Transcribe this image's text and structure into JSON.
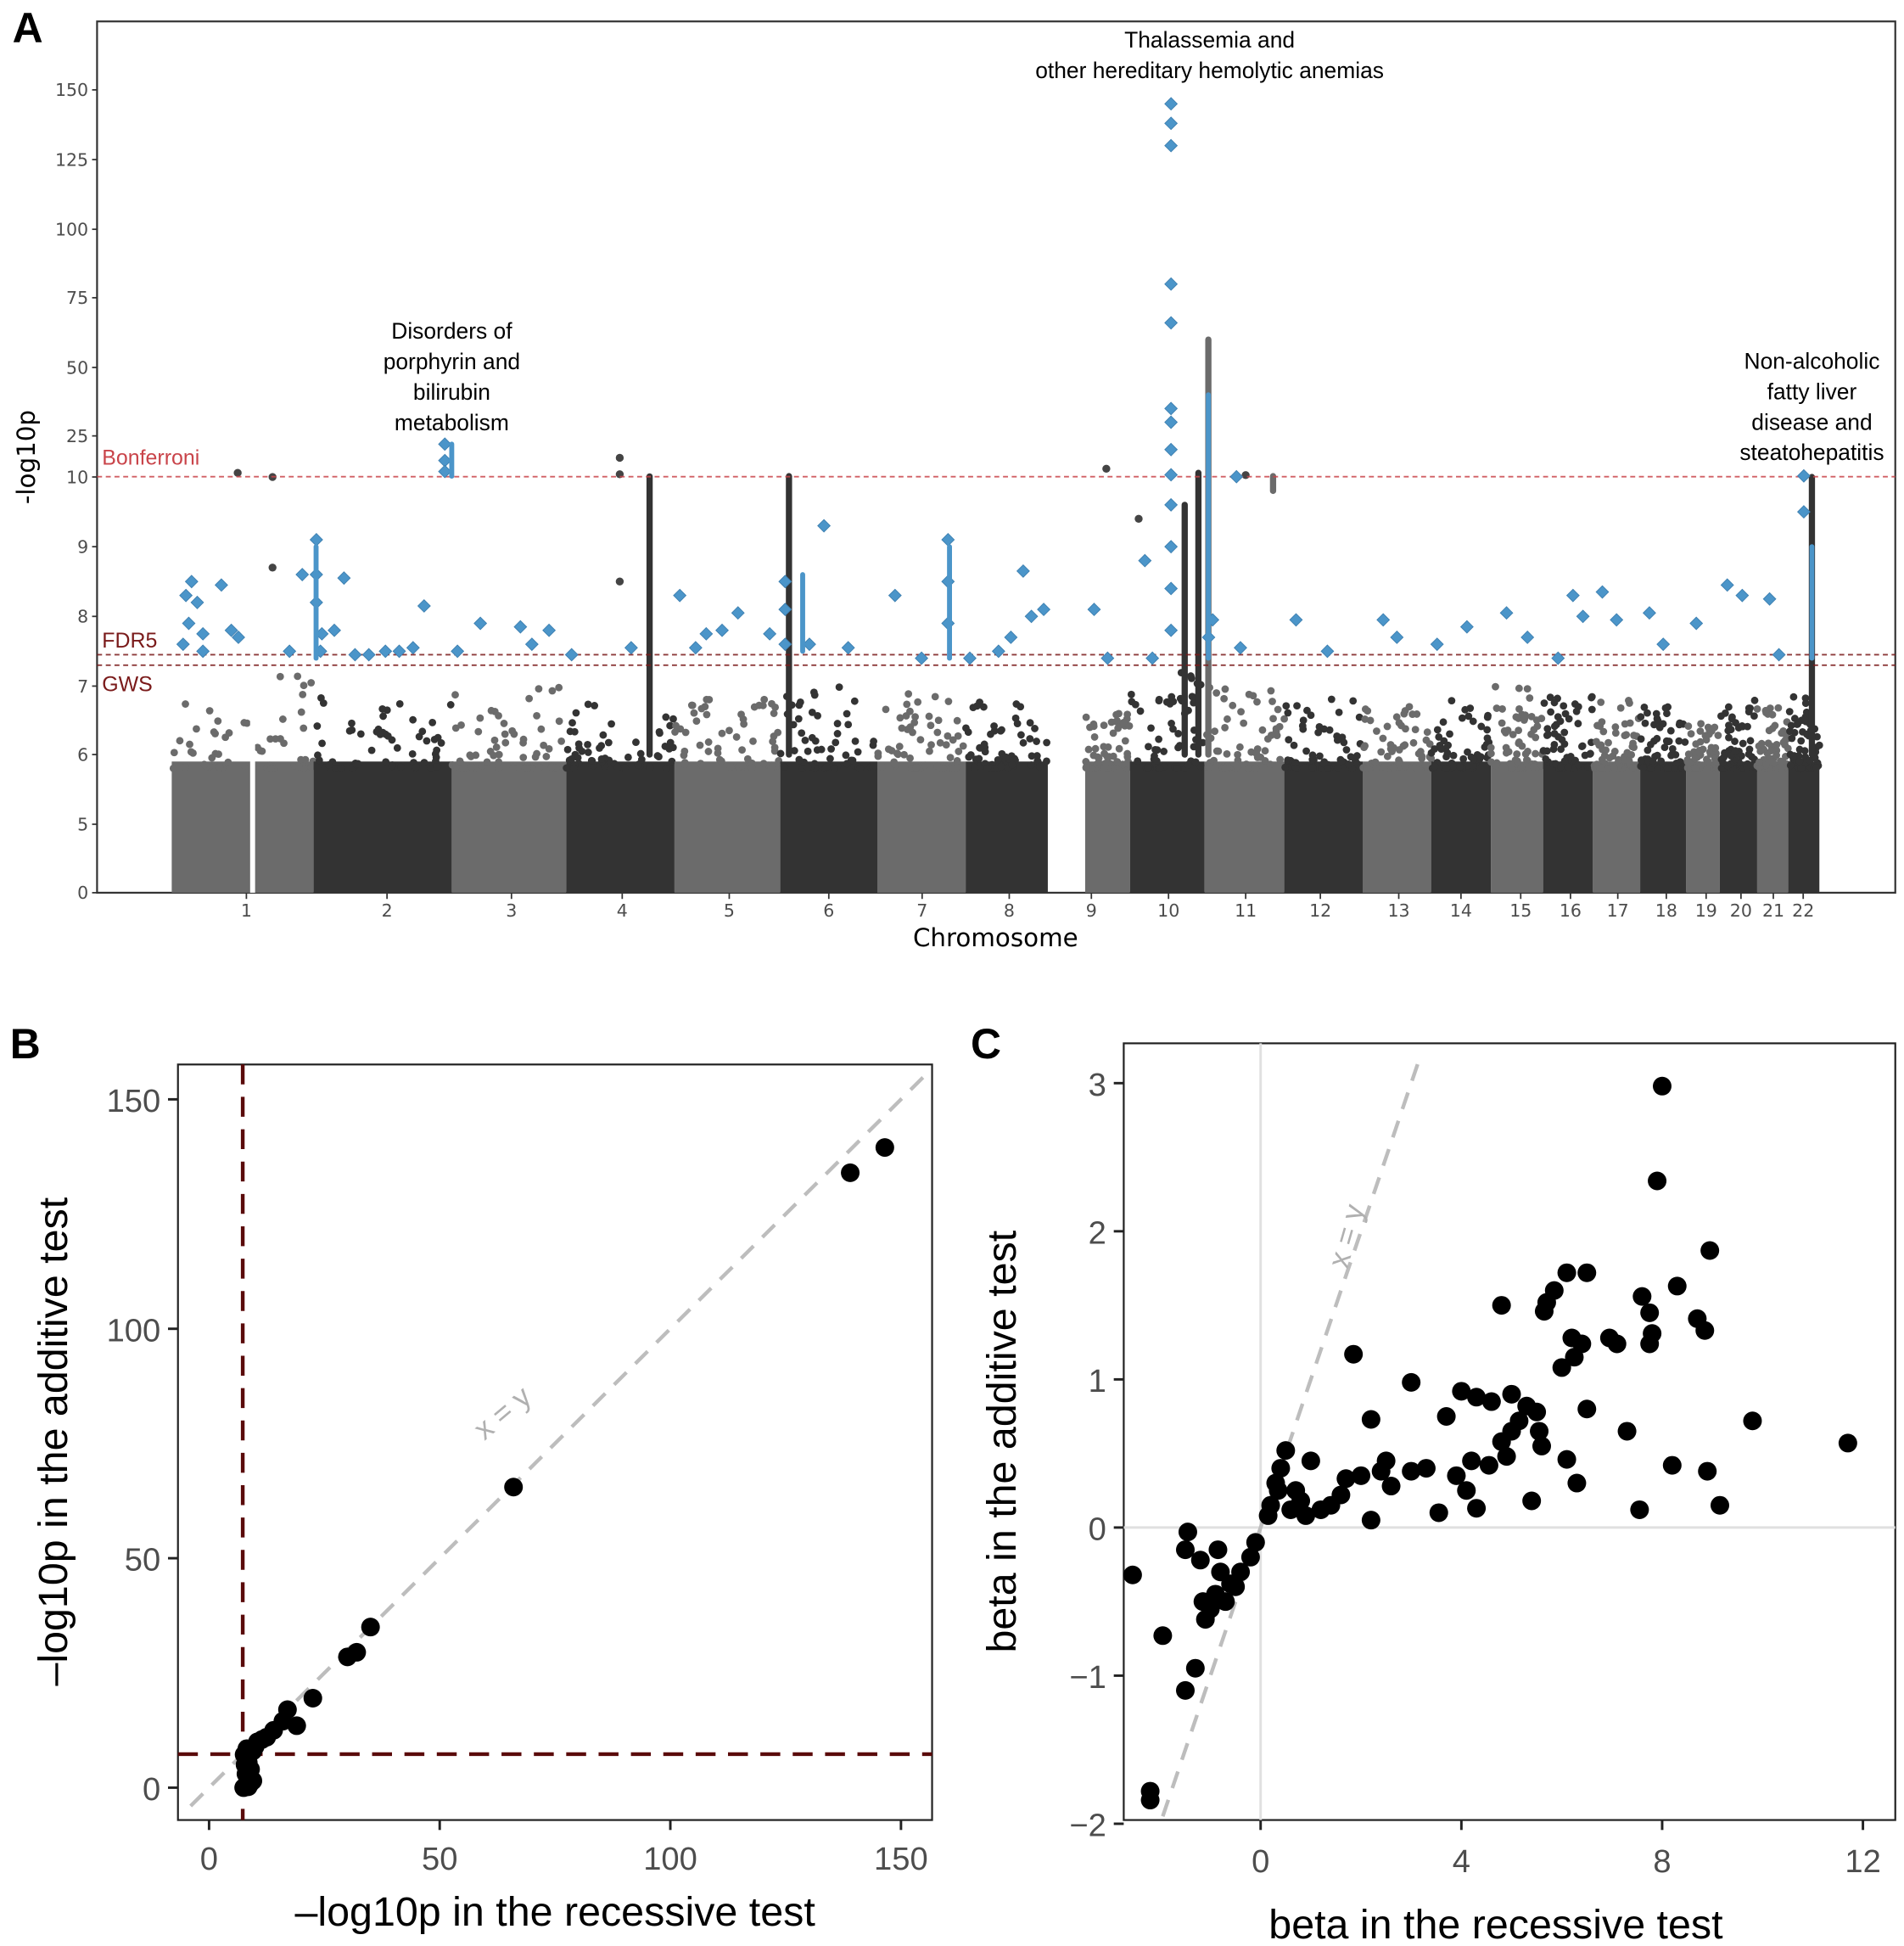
{
  "figure": {
    "panel_labels": [
      "A",
      "B",
      "C"
    ]
  },
  "chart_data": [
    {
      "panel": "A",
      "type": "scatter",
      "subtype": "manhattan",
      "xlabel": "Chromosome",
      "ylabel": "-log10p",
      "x_tick_labels": [
        "1",
        "2",
        "3",
        "4",
        "5",
        "6",
        "7",
        "8",
        "9",
        "10",
        "11",
        "12",
        "13",
        "14",
        "15",
        "16",
        "17",
        "18",
        "19",
        "20",
        "21",
        "22"
      ],
      "y_tick_labels": [
        "0",
        "5",
        "6",
        "7",
        "8",
        "9",
        "10",
        "25",
        "50",
        "75",
        "100",
        "125",
        "150"
      ],
      "y_axis_note": "broken scale: 0-5 compressed, 5-10 linear, 10-150 compressed",
      "ylim": [
        0,
        170
      ],
      "thresholds": [
        {
          "name": "Bonferroni",
          "value": 10.1,
          "color": "#c9444a"
        },
        {
          "name": "FDR5",
          "value": 7.45,
          "color": "#7a1a1a"
        },
        {
          "name": "GWS",
          "value": 7.3,
          "color": "#7a1a1a"
        }
      ],
      "colors": {
        "chrom_odd": "#6b6b6b",
        "chrom_even": "#333333",
        "highlight": "#4b95c9"
      },
      "chromosome_bulk_max": [
        6.8,
        6.5,
        6.6,
        6.4,
        6.5,
        6.7,
        6.5,
        6.4,
        6.2,
        6.8,
        6.6,
        6.5,
        6.3,
        6.4,
        6.6,
        6.5,
        6.4,
        6.3,
        6.1,
        6.4,
        6.3,
        6.5
      ],
      "annotations": [
        {
          "lines": [
            "Disorders of",
            "porphyrin and",
            "bilirubin",
            "metabolism"
          ],
          "chromosome": "2"
        },
        {
          "lines": [
            "Thalassemia and",
            "other hereditary hemolytic anemias"
          ],
          "chromosome": "11"
        },
        {
          "lines": [
            "Non-alcoholic",
            "fatty liver",
            "disease and",
            "steatohepatitis"
          ],
          "chromosome": "22"
        }
      ],
      "highlighted_points": [
        {
          "chr": 1,
          "pos": 0.1,
          "y": 8.3
        },
        {
          "chr": 1,
          "pos": 0.14,
          "y": 8.5
        },
        {
          "chr": 1,
          "pos": 0.18,
          "y": 8.2
        },
        {
          "chr": 1,
          "pos": 0.12,
          "y": 7.9
        },
        {
          "chr": 1,
          "pos": 0.08,
          "y": 7.6
        },
        {
          "chr": 1,
          "pos": 0.22,
          "y": 7.75
        },
        {
          "chr": 1,
          "pos": 0.22,
          "y": 7.5
        },
        {
          "chr": 1,
          "pos": 0.35,
          "y": 8.45
        },
        {
          "chr": 1,
          "pos": 0.42,
          "y": 7.8
        },
        {
          "chr": 1,
          "pos": 0.47,
          "y": 7.7
        },
        {
          "chr": 1,
          "pos": 0.83,
          "y": 7.5
        },
        {
          "chr": 1,
          "pos": 0.92,
          "y": 8.6
        },
        {
          "chr": 2,
          "pos": 0.02,
          "y": 9.1
        },
        {
          "chr": 2,
          "pos": 0.02,
          "y": 8.6
        },
        {
          "chr": 2,
          "pos": 0.02,
          "y": 8.2
        },
        {
          "chr": 2,
          "pos": 0.06,
          "y": 7.75
        },
        {
          "chr": 2,
          "pos": 0.05,
          "y": 7.5
        },
        {
          "chr": 2,
          "pos": 0.15,
          "y": 7.8
        },
        {
          "chr": 2,
          "pos": 0.22,
          "y": 8.55
        },
        {
          "chr": 2,
          "pos": 0.3,
          "y": 7.45
        },
        {
          "chr": 2,
          "pos": 0.4,
          "y": 7.45
        },
        {
          "chr": 2,
          "pos": 0.52,
          "y": 7.5
        },
        {
          "chr": 2,
          "pos": 0.62,
          "y": 7.5
        },
        {
          "chr": 2,
          "pos": 0.72,
          "y": 7.55
        },
        {
          "chr": 2,
          "pos": 0.8,
          "y": 8.15
        },
        {
          "chr": 2,
          "pos": 0.95,
          "y": 22
        },
        {
          "chr": 2,
          "pos": 0.95,
          "y": 16
        },
        {
          "chr": 2,
          "pos": 0.95,
          "y": 12
        },
        {
          "chr": 3,
          "pos": 0.05,
          "y": 7.5
        },
        {
          "chr": 3,
          "pos": 0.25,
          "y": 7.9
        },
        {
          "chr": 3,
          "pos": 0.6,
          "y": 7.85
        },
        {
          "chr": 3,
          "pos": 0.7,
          "y": 7.6
        },
        {
          "chr": 3,
          "pos": 0.85,
          "y": 7.8
        },
        {
          "chr": 4,
          "pos": 0.05,
          "y": 7.45
        },
        {
          "chr": 4,
          "pos": 0.6,
          "y": 7.55
        },
        {
          "chr": 5,
          "pos": 0.05,
          "y": 8.3
        },
        {
          "chr": 5,
          "pos": 0.2,
          "y": 7.55
        },
        {
          "chr": 5,
          "pos": 0.3,
          "y": 7.75
        },
        {
          "chr": 5,
          "pos": 0.45,
          "y": 7.8
        },
        {
          "chr": 5,
          "pos": 0.6,
          "y": 8.05
        },
        {
          "chr": 5,
          "pos": 0.9,
          "y": 7.75
        },
        {
          "chr": 6,
          "pos": 0.05,
          "y": 8.5
        },
        {
          "chr": 6,
          "pos": 0.05,
          "y": 8.1
        },
        {
          "chr": 6,
          "pos": 0.05,
          "y": 7.6
        },
        {
          "chr": 6,
          "pos": 0.3,
          "y": 7.6
        },
        {
          "chr": 6,
          "pos": 0.45,
          "y": 9.3
        },
        {
          "chr": 6,
          "pos": 0.7,
          "y": 7.55
        },
        {
          "chr": 7,
          "pos": 0.2,
          "y": 8.3
        },
        {
          "chr": 7,
          "pos": 0.5,
          "y": 7.4
        },
        {
          "chr": 7,
          "pos": 0.8,
          "y": 9.1
        },
        {
          "chr": 7,
          "pos": 0.8,
          "y": 8.5
        },
        {
          "chr": 7,
          "pos": 0.8,
          "y": 7.9
        },
        {
          "chr": 8,
          "pos": 0.05,
          "y": 7.4
        },
        {
          "chr": 8,
          "pos": 0.4,
          "y": 7.5
        },
        {
          "chr": 8,
          "pos": 0.55,
          "y": 7.7
        },
        {
          "chr": 8,
          "pos": 0.7,
          "y": 8.65
        },
        {
          "chr": 8,
          "pos": 0.8,
          "y": 8.0
        },
        {
          "chr": 8,
          "pos": 0.95,
          "y": 8.1
        },
        {
          "chr": 9,
          "pos": 0.2,
          "y": 8.1
        },
        {
          "chr": 9,
          "pos": 0.5,
          "y": 7.4
        },
        {
          "chr": 10,
          "pos": 0.2,
          "y": 8.8
        },
        {
          "chr": 10,
          "pos": 0.3,
          "y": 7.4
        },
        {
          "chr": 10,
          "pos": 0.55,
          "y": 145
        },
        {
          "chr": 10,
          "pos": 0.55,
          "y": 138
        },
        {
          "chr": 10,
          "pos": 0.55,
          "y": 130
        },
        {
          "chr": 10,
          "pos": 0.55,
          "y": 80
        },
        {
          "chr": 10,
          "pos": 0.55,
          "y": 66
        },
        {
          "chr": 10,
          "pos": 0.55,
          "y": 35
        },
        {
          "chr": 10,
          "pos": 0.55,
          "y": 30
        },
        {
          "chr": 10,
          "pos": 0.55,
          "y": 20
        },
        {
          "chr": 10,
          "pos": 0.55,
          "y": 10.8
        },
        {
          "chr": 10,
          "pos": 0.55,
          "y": 9.6
        },
        {
          "chr": 10,
          "pos": 0.55,
          "y": 9.0
        },
        {
          "chr": 10,
          "pos": 0.55,
          "y": 8.4
        },
        {
          "chr": 10,
          "pos": 0.55,
          "y": 7.8
        },
        {
          "chr": 11,
          "pos": 0.05,
          "y": 7.7
        },
        {
          "chr": 11,
          "pos": 0.1,
          "y": 7.95
        },
        {
          "chr": 11,
          "pos": 0.4,
          "y": 10.1
        },
        {
          "chr": 11,
          "pos": 0.45,
          "y": 7.55
        },
        {
          "chr": 12,
          "pos": 0.15,
          "y": 7.95
        },
        {
          "chr": 12,
          "pos": 0.55,
          "y": 7.5
        },
        {
          "chr": 13,
          "pos": 0.3,
          "y": 7.95
        },
        {
          "chr": 13,
          "pos": 0.5,
          "y": 7.7
        },
        {
          "chr": 14,
          "pos": 0.1,
          "y": 7.6
        },
        {
          "chr": 14,
          "pos": 0.6,
          "y": 7.85
        },
        {
          "chr": 15,
          "pos": 0.3,
          "y": 8.05
        },
        {
          "chr": 15,
          "pos": 0.7,
          "y": 7.7
        },
        {
          "chr": 16,
          "pos": 0.3,
          "y": 7.4
        },
        {
          "chr": 16,
          "pos": 0.6,
          "y": 8.3
        },
        {
          "chr": 16,
          "pos": 0.8,
          "y": 8.0
        },
        {
          "chr": 17,
          "pos": 0.2,
          "y": 8.35
        },
        {
          "chr": 17,
          "pos": 0.5,
          "y": 7.95
        },
        {
          "chr": 18,
          "pos": 0.2,
          "y": 8.05
        },
        {
          "chr": 18,
          "pos": 0.5,
          "y": 7.6
        },
        {
          "chr": 19,
          "pos": 0.3,
          "y": 7.9
        },
        {
          "chr": 20,
          "pos": 0.2,
          "y": 8.45
        },
        {
          "chr": 20,
          "pos": 0.6,
          "y": 8.3
        },
        {
          "chr": 21,
          "pos": 0.4,
          "y": 8.25
        },
        {
          "chr": 21,
          "pos": 0.7,
          "y": 7.45
        },
        {
          "chr": 22,
          "pos": 0.5,
          "y": 10.4
        },
        {
          "chr": 22,
          "pos": 0.5,
          "y": 9.5
        }
      ]
    },
    {
      "panel": "B",
      "type": "scatter",
      "xlabel": "–log10p in the recessive test",
      "ylabel": "–log10p in the additive test",
      "xlim": [
        -7,
        158
      ],
      "ylim": [
        -7,
        160
      ],
      "x_ticks": [
        0,
        50,
        100,
        150
      ],
      "y_ticks": [
        0,
        50,
        100,
        150
      ],
      "reference_line": {
        "label": "x = y",
        "slope": 1,
        "intercept": 0,
        "color": "#bdbdbd",
        "style": "dashed"
      },
      "threshold_lines": [
        {
          "axis": "x",
          "value": 7.3,
          "color": "#5a0a0a",
          "style": "dashed"
        },
        {
          "axis": "y",
          "value": 7.3,
          "color": "#5a0a0a",
          "style": "dashed"
        }
      ],
      "points": [
        [
          146.5,
          139.5
        ],
        [
          139.0,
          134.0
        ],
        [
          66.0,
          65.5
        ],
        [
          35.0,
          35.0
        ],
        [
          32.0,
          29.5
        ],
        [
          30.0,
          28.5
        ],
        [
          22.5,
          19.5
        ],
        [
          19.0,
          13.5
        ],
        [
          17.0,
          17.0
        ],
        [
          16.0,
          14.5
        ],
        [
          14.0,
          12.5
        ],
        [
          12.5,
          11.0
        ],
        [
          11.5,
          10.5
        ],
        [
          10.5,
          10.0
        ],
        [
          10.0,
          9.0
        ],
        [
          9.5,
          8.0
        ],
        [
          8.5,
          7.5
        ],
        [
          8.0,
          6.5
        ],
        [
          8.5,
          5.5
        ],
        [
          9.0,
          4.0
        ],
        [
          8.0,
          3.0
        ],
        [
          8.5,
          2.0
        ],
        [
          9.0,
          1.0
        ],
        [
          8.0,
          0.5
        ],
        [
          7.5,
          0.0
        ],
        [
          8.5,
          0.2
        ],
        [
          9.5,
          1.5
        ],
        [
          7.8,
          5.0
        ],
        [
          8.2,
          8.5
        ],
        [
          7.6,
          7.2
        ]
      ]
    },
    {
      "panel": "C",
      "type": "scatter",
      "xlabel": "beta in the recessive test",
      "ylabel": "beta in the additive test",
      "xlim": [
        -3.0,
        12.5
      ],
      "ylim": [
        -2.05,
        3.2
      ],
      "x_ticks": [
        0,
        4,
        8,
        12
      ],
      "y_ticks": [
        -2,
        -1,
        0,
        1,
        2,
        3
      ],
      "y_tick_labels": [
        "−2",
        "−1",
        "0",
        "1",
        "2",
        "3"
      ],
      "reference_line": {
        "label": "x = y",
        "slope": 1,
        "intercept": 0,
        "color": "#bdbdbd",
        "style": "dashed"
      },
      "zero_lines": true,
      "points": [
        [
          8.0,
          2.98
        ],
        [
          7.9,
          2.34
        ],
        [
          8.95,
          1.87
        ],
        [
          6.1,
          1.72
        ],
        [
          6.5,
          1.72
        ],
        [
          5.85,
          1.6
        ],
        [
          5.7,
          1.52
        ],
        [
          5.65,
          1.46
        ],
        [
          8.3,
          1.63
        ],
        [
          7.6,
          1.56
        ],
        [
          7.75,
          1.45
        ],
        [
          8.7,
          1.41
        ],
        [
          8.85,
          1.33
        ],
        [
          7.8,
          1.31
        ],
        [
          7.75,
          1.24
        ],
        [
          4.8,
          1.5
        ],
        [
          1.85,
          1.17
        ],
        [
          6.2,
          1.28
        ],
        [
          6.4,
          1.24
        ],
        [
          6.95,
          1.28
        ],
        [
          7.1,
          1.24
        ],
        [
          6.0,
          1.08
        ],
        [
          6.25,
          1.15
        ],
        [
          3.0,
          0.98
        ],
        [
          2.2,
          0.73
        ],
        [
          4.6,
          0.85
        ],
        [
          5.0,
          0.9
        ],
        [
          4.0,
          0.92
        ],
        [
          4.3,
          0.88
        ],
        [
          3.7,
          0.75
        ],
        [
          5.3,
          0.82
        ],
        [
          5.5,
          0.78
        ],
        [
          5.15,
          0.72
        ],
        [
          6.5,
          0.8
        ],
        [
          7.3,
          0.65
        ],
        [
          9.8,
          0.72
        ],
        [
          11.7,
          0.57
        ],
        [
          5.0,
          0.65
        ],
        [
          4.8,
          0.58
        ],
        [
          4.9,
          0.48
        ],
        [
          5.55,
          0.65
        ],
        [
          5.6,
          0.55
        ],
        [
          6.1,
          0.46
        ],
        [
          8.2,
          0.42
        ],
        [
          8.9,
          0.38
        ],
        [
          4.2,
          0.45
        ],
        [
          4.55,
          0.42
        ],
        [
          3.9,
          0.35
        ],
        [
          3.3,
          0.4
        ],
        [
          2.5,
          0.45
        ],
        [
          2.4,
          0.38
        ],
        [
          2.0,
          0.35
        ],
        [
          1.7,
          0.33
        ],
        [
          3.0,
          0.38
        ],
        [
          2.6,
          0.28
        ],
        [
          4.1,
          0.25
        ],
        [
          4.3,
          0.13
        ],
        [
          5.4,
          0.18
        ],
        [
          6.3,
          0.3
        ],
        [
          7.55,
          0.12
        ],
        [
          9.15,
          0.15
        ],
        [
          3.55,
          0.1
        ],
        [
          2.2,
          0.05
        ],
        [
          1.0,
          0.45
        ],
        [
          1.6,
          0.22
        ],
        [
          1.4,
          0.15
        ],
        [
          1.2,
          0.12
        ],
        [
          0.8,
          0.18
        ],
        [
          0.5,
          0.52
        ],
        [
          0.4,
          0.4
        ],
        [
          0.35,
          0.25
        ],
        [
          0.2,
          0.15
        ],
        [
          0.15,
          0.08
        ],
        [
          0.6,
          0.12
        ],
        [
          0.9,
          0.08
        ],
        [
          0.3,
          0.3
        ],
        [
          0.7,
          0.25
        ],
        [
          -0.1,
          -0.1
        ],
        [
          -0.2,
          -0.2
        ],
        [
          -0.4,
          -0.3
        ],
        [
          -0.5,
          -0.4
        ],
        [
          -0.6,
          -0.38
        ],
        [
          -0.8,
          -0.3
        ],
        [
          -0.7,
          -0.5
        ],
        [
          -0.9,
          -0.45
        ],
        [
          -1.0,
          -0.55
        ],
        [
          -1.1,
          -0.62
        ],
        [
          -1.15,
          -0.5
        ],
        [
          -0.85,
          -0.15
        ],
        [
          -1.2,
          -0.22
        ],
        [
          -1.5,
          -0.15
        ],
        [
          -1.45,
          -0.03
        ],
        [
          -2.55,
          -0.32
        ],
        [
          -1.95,
          -0.73
        ],
        [
          -1.3,
          -0.95
        ],
        [
          -1.5,
          -1.1
        ],
        [
          -2.2,
          -1.78
        ],
        [
          -2.2,
          -1.84
        ]
      ]
    }
  ]
}
